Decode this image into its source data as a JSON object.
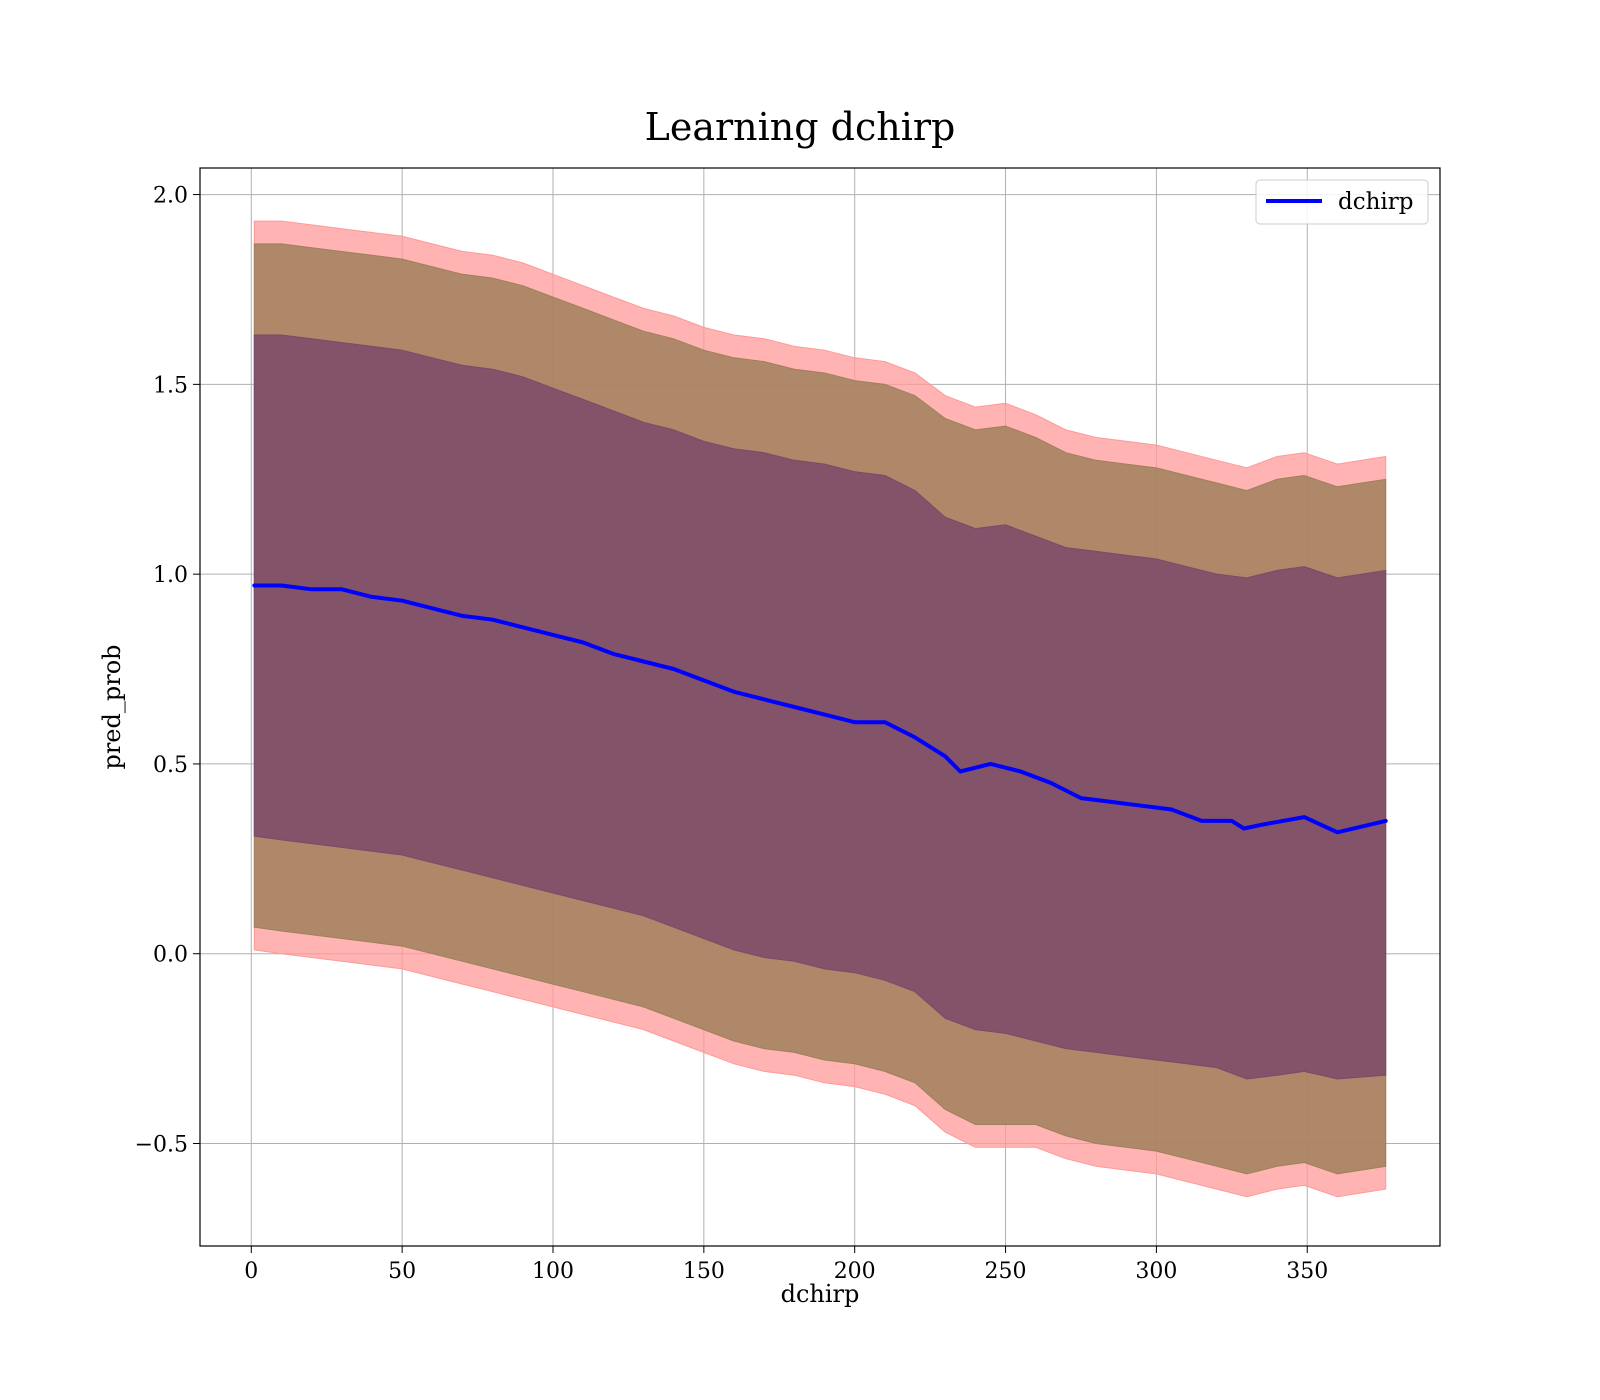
{
  "chart_data": {
    "type": "line",
    "title": "Learning dchirp",
    "xlabel": "dchirp",
    "ylabel": "pred_prob",
    "xlim": [
      -17,
      394
    ],
    "ylim": [
      -0.77,
      2.07
    ],
    "xticks": [
      0,
      50,
      100,
      150,
      200,
      250,
      300,
      350
    ],
    "xtick_labels": [
      "0",
      "50",
      "100",
      "150",
      "200",
      "250",
      "300",
      "350"
    ],
    "yticks": [
      -0.5,
      0.0,
      0.5,
      1.0,
      1.5,
      2.0
    ],
    "ytick_labels": [
      "−0.5",
      "0.0",
      "0.5",
      "1.0",
      "1.5",
      "2.0"
    ],
    "grid": true,
    "legend_position": "top-right",
    "series": [
      {
        "name": "dchirp",
        "color": "#0000ff",
        "x": [
          1,
          10,
          20,
          30,
          40,
          50,
          60,
          70,
          80,
          90,
          100,
          110,
          120,
          130,
          140,
          150,
          160,
          170,
          180,
          190,
          200,
          210,
          220,
          230,
          235,
          245,
          255,
          265,
          275,
          285,
          295,
          305,
          315,
          325,
          329,
          335,
          349,
          360,
          376
        ],
        "y": [
          0.97,
          0.97,
          0.96,
          0.96,
          0.94,
          0.93,
          0.91,
          0.89,
          0.88,
          0.86,
          0.84,
          0.82,
          0.79,
          0.77,
          0.75,
          0.72,
          0.69,
          0.67,
          0.65,
          0.63,
          0.61,
          0.61,
          0.57,
          0.52,
          0.48,
          0.5,
          0.48,
          0.45,
          0.41,
          0.4,
          0.39,
          0.38,
          0.35,
          0.35,
          0.33,
          0.34,
          0.36,
          0.32,
          0.35
        ]
      }
    ],
    "bands": [
      {
        "color": "#ff9999",
        "x": [
          1,
          10,
          20,
          30,
          40,
          50,
          60,
          70,
          80,
          90,
          100,
          110,
          120,
          130,
          140,
          150,
          160,
          170,
          180,
          190,
          200,
          210,
          220,
          230,
          240,
          250,
          260,
          270,
          280,
          290,
          300,
          310,
          320,
          330,
          340,
          349,
          360,
          376
        ],
        "upper": [
          1.93,
          1.93,
          1.92,
          1.91,
          1.9,
          1.89,
          1.87,
          1.85,
          1.84,
          1.82,
          1.79,
          1.76,
          1.73,
          1.7,
          1.68,
          1.65,
          1.63,
          1.62,
          1.6,
          1.59,
          1.57,
          1.56,
          1.53,
          1.47,
          1.44,
          1.45,
          1.42,
          1.38,
          1.36,
          1.35,
          1.34,
          1.32,
          1.3,
          1.28,
          1.31,
          1.32,
          1.29,
          1.31
        ],
        "lower": [
          0.01,
          0.0,
          -0.01,
          -0.02,
          -0.03,
          -0.04,
          -0.06,
          -0.08,
          -0.1,
          -0.12,
          -0.14,
          -0.16,
          -0.18,
          -0.2,
          -0.23,
          -0.26,
          -0.29,
          -0.31,
          -0.32,
          -0.34,
          -0.35,
          -0.37,
          -0.4,
          -0.47,
          -0.51,
          -0.51,
          -0.51,
          -0.54,
          -0.56,
          -0.57,
          -0.58,
          -0.6,
          -0.62,
          -0.64,
          -0.62,
          -0.61,
          -0.64,
          -0.62
        ]
      },
      {
        "color": "#a0805a",
        "x": [
          1,
          10,
          20,
          30,
          40,
          50,
          60,
          70,
          80,
          90,
          100,
          110,
          120,
          130,
          140,
          150,
          160,
          170,
          180,
          190,
          200,
          210,
          220,
          230,
          240,
          250,
          260,
          270,
          280,
          290,
          300,
          310,
          320,
          330,
          340,
          349,
          360,
          376
        ],
        "upper": [
          1.87,
          1.87,
          1.86,
          1.85,
          1.84,
          1.83,
          1.81,
          1.79,
          1.78,
          1.76,
          1.73,
          1.7,
          1.67,
          1.64,
          1.62,
          1.59,
          1.57,
          1.56,
          1.54,
          1.53,
          1.51,
          1.5,
          1.47,
          1.41,
          1.38,
          1.39,
          1.36,
          1.32,
          1.3,
          1.29,
          1.28,
          1.26,
          1.24,
          1.22,
          1.25,
          1.26,
          1.23,
          1.25
        ],
        "lower": [
          0.07,
          0.06,
          0.05,
          0.04,
          0.03,
          0.02,
          0.0,
          -0.02,
          -0.04,
          -0.06,
          -0.08,
          -0.1,
          -0.12,
          -0.14,
          -0.17,
          -0.2,
          -0.23,
          -0.25,
          -0.26,
          -0.28,
          -0.29,
          -0.31,
          -0.34,
          -0.41,
          -0.45,
          -0.45,
          -0.45,
          -0.48,
          -0.5,
          -0.51,
          -0.52,
          -0.54,
          -0.56,
          -0.58,
          -0.56,
          -0.55,
          -0.58,
          -0.56
        ]
      },
      {
        "color": "#7b4a6a",
        "x": [
          1,
          10,
          20,
          30,
          40,
          50,
          60,
          70,
          80,
          90,
          100,
          110,
          120,
          130,
          140,
          150,
          160,
          170,
          180,
          190,
          200,
          210,
          220,
          230,
          240,
          250,
          260,
          270,
          280,
          290,
          300,
          310,
          320,
          330,
          340,
          349,
          360,
          376
        ],
        "upper": [
          1.63,
          1.63,
          1.62,
          1.61,
          1.6,
          1.59,
          1.57,
          1.55,
          1.54,
          1.52,
          1.49,
          1.46,
          1.43,
          1.4,
          1.38,
          1.35,
          1.33,
          1.32,
          1.3,
          1.29,
          1.27,
          1.26,
          1.22,
          1.15,
          1.12,
          1.13,
          1.1,
          1.07,
          1.06,
          1.05,
          1.04,
          1.02,
          1.0,
          0.99,
          1.01,
          1.02,
          0.99,
          1.01
        ],
        "lower": [
          0.31,
          0.3,
          0.29,
          0.28,
          0.27,
          0.26,
          0.24,
          0.22,
          0.2,
          0.18,
          0.16,
          0.14,
          0.12,
          0.1,
          0.07,
          0.04,
          0.01,
          -0.01,
          -0.02,
          -0.04,
          -0.05,
          -0.07,
          -0.1,
          -0.17,
          -0.2,
          -0.21,
          -0.23,
          -0.25,
          -0.26,
          -0.27,
          -0.28,
          -0.29,
          -0.3,
          -0.33,
          -0.32,
          -0.31,
          -0.33,
          -0.32
        ]
      }
    ]
  }
}
